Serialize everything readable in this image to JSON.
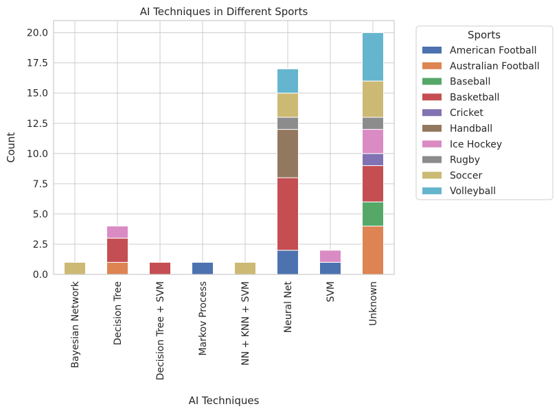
{
  "chart_data": {
    "type": "bar",
    "stacked": true,
    "title": "AI Techniques in Different Sports",
    "xlabel": "AI Techniques",
    "ylabel": "Count",
    "ylim": [
      0,
      21
    ],
    "yticks": [
      "0.0",
      "2.5",
      "5.0",
      "7.5",
      "10.0",
      "12.5",
      "15.0",
      "17.5",
      "20.0"
    ],
    "grid": true,
    "legend": {
      "title": "Sports",
      "placement": "outside-top-right"
    },
    "categories": [
      "Bayesian Network",
      "Decision Tree",
      "Decision Tree + SVM",
      "Markov Process",
      "NN + KNN + SVM",
      "Neural Net",
      "SVM",
      "Unknown"
    ],
    "series": [
      {
        "name": "American Football",
        "color": "#4c72b0",
        "values": [
          0,
          0,
          0,
          1,
          0,
          2,
          1,
          0
        ]
      },
      {
        "name": "Australian Football",
        "color": "#dd8452",
        "values": [
          0,
          1,
          0,
          0,
          0,
          0,
          0,
          4
        ]
      },
      {
        "name": "Baseball",
        "color": "#55a868",
        "values": [
          0,
          0,
          0,
          0,
          0,
          0,
          0,
          2
        ]
      },
      {
        "name": "Basketball",
        "color": "#c44e52",
        "values": [
          0,
          2,
          1,
          0,
          0,
          6,
          0,
          3
        ]
      },
      {
        "name": "Cricket",
        "color": "#8172b3",
        "values": [
          0,
          0,
          0,
          0,
          0,
          0,
          0,
          1
        ]
      },
      {
        "name": "Handball",
        "color": "#937860",
        "values": [
          0,
          0,
          0,
          0,
          0,
          4,
          0,
          0
        ]
      },
      {
        "name": "Ice Hockey",
        "color": "#da8bc3",
        "values": [
          0,
          1,
          0,
          0,
          0,
          0,
          1,
          2
        ]
      },
      {
        "name": "Rugby",
        "color": "#8c8c8c",
        "values": [
          0,
          0,
          0,
          0,
          0,
          1,
          0,
          1
        ]
      },
      {
        "name": "Soccer",
        "color": "#ccb974",
        "values": [
          1,
          0,
          0,
          0,
          1,
          2,
          0,
          3
        ]
      },
      {
        "name": "Volleyball",
        "color": "#64b5cd",
        "values": [
          0,
          0,
          0,
          0,
          0,
          2,
          0,
          4
        ]
      }
    ]
  }
}
